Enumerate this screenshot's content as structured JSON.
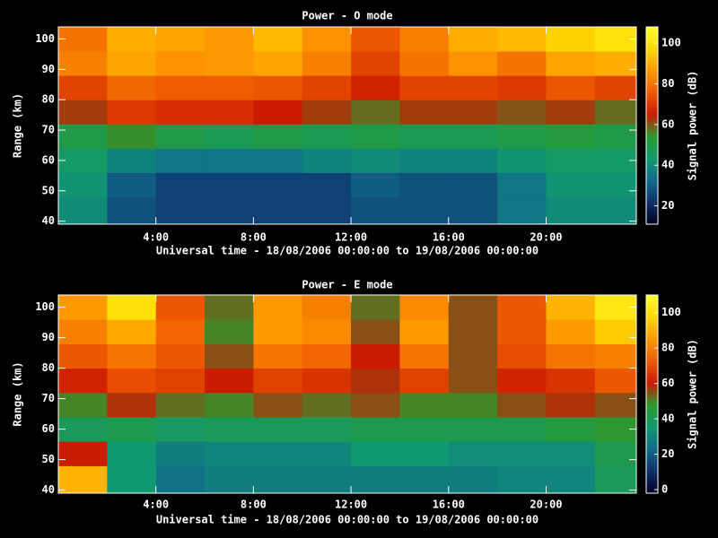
{
  "chart_data": [
    {
      "type": "heatmap",
      "title": "Power - O mode",
      "xlabel": "Universal time - 18/08/2006 00:00:00 to 19/08/2006 00:00:00",
      "ylabel": "Range (km)",
      "zlabel": "Signal power (dB)",
      "xlim": [
        0,
        23.7
      ],
      "ylim": [
        39,
        104
      ],
      "zlim": [
        11,
        108
      ],
      "xticks": [
        {
          "value": 4,
          "label": "4:00"
        },
        {
          "value": 8,
          "label": "8:00"
        },
        {
          "value": 12,
          "label": "12:00"
        },
        {
          "value": 16,
          "label": "16:00"
        },
        {
          "value": 20,
          "label": "20:00"
        }
      ],
      "yticks": [
        40,
        50,
        60,
        70,
        80,
        90,
        100
      ],
      "zticks": [
        20,
        40,
        60,
        80,
        100
      ],
      "colorscale": [
        "#000020",
        "#10306a",
        "#106a8a",
        "#109a70",
        "#2a9a30",
        "#cc1a00",
        "#ee5a00",
        "#ff9a00",
        "#ffd800",
        "#ffff30"
      ],
      "xbins": [
        0,
        2,
        4,
        6,
        8,
        10,
        12,
        14,
        16,
        18,
        20,
        22,
        23.7
      ],
      "ybins": [
        39,
        48,
        56,
        64,
        72,
        80,
        88,
        96,
        104
      ],
      "z": [
        [
          40,
          28,
          25,
          25,
          25,
          25,
          28,
          28,
          28,
          35,
          40,
          40
        ],
        [
          42,
          30,
          25,
          25,
          25,
          25,
          30,
          28,
          28,
          35,
          42,
          42
        ],
        [
          45,
          38,
          35,
          35,
          35,
          38,
          40,
          38,
          38,
          42,
          45,
          45
        ],
        [
          50,
          55,
          50,
          48,
          50,
          48,
          50,
          48,
          48,
          50,
          52,
          50
        ],
        [
          62,
          70,
          68,
          68,
          65,
          62,
          58,
          62,
          62,
          60,
          62,
          58
        ],
        [
          72,
          78,
          76,
          76,
          75,
          72,
          66,
          72,
          72,
          70,
          75,
          72
        ],
        [
          82,
          88,
          85,
          86,
          88,
          82,
          72,
          80,
          85,
          80,
          88,
          90
        ],
        [
          80,
          90,
          88,
          86,
          92,
          85,
          75,
          82,
          90,
          92,
          96,
          100
        ]
      ]
    },
    {
      "type": "heatmap",
      "title": "Power - E mode",
      "xlabel": "Universal time - 18/08/2006 00:00:00 to 19/08/2006 00:00:00",
      "ylabel": "Range (km)",
      "zlabel": "Signal power (dB)",
      "xlim": [
        0,
        23.7
      ],
      "ylim": [
        39,
        104
      ],
      "zlim": [
        -2,
        110
      ],
      "xticks": [
        {
          "value": 4,
          "label": "4:00"
        },
        {
          "value": 8,
          "label": "8:00"
        },
        {
          "value": 12,
          "label": "12:00"
        },
        {
          "value": 16,
          "label": "16:00"
        },
        {
          "value": 20,
          "label": "20:00"
        }
      ],
      "yticks": [
        40,
        50,
        60,
        70,
        80,
        90,
        100
      ],
      "zticks": [
        0,
        20,
        40,
        60,
        80,
        100
      ],
      "colorscale": [
        "#000020",
        "#10306a",
        "#106a8a",
        "#109a70",
        "#2a9a30",
        "#cc1a00",
        "#ee5a00",
        "#ff9a00",
        "#ffd800",
        "#ffff30"
      ],
      "xbins": [
        0,
        2,
        4,
        6,
        8,
        10,
        12,
        14,
        16,
        18,
        20,
        22,
        23.7
      ],
      "ybins": [
        39,
        48,
        56,
        64,
        72,
        80,
        88,
        96,
        104
      ],
      "z": [
        [
          90,
          35,
          25,
          28,
          28,
          28,
          28,
          28,
          28,
          30,
          30,
          40
        ],
        [
          60,
          35,
          28,
          30,
          30,
          30,
          35,
          35,
          32,
          32,
          32,
          42
        ],
        [
          40,
          42,
          38,
          40,
          40,
          40,
          42,
          42,
          42,
          42,
          45,
          48
        ],
        [
          50,
          58,
          52,
          50,
          55,
          52,
          55,
          50,
          50,
          55,
          58,
          55
        ],
        [
          62,
          70,
          68,
          60,
          68,
          65,
          58,
          68,
          55,
          62,
          65,
          72
        ],
        [
          72,
          78,
          72,
          55,
          78,
          75,
          60,
          78,
          55,
          70,
          78,
          80
        ],
        [
          80,
          88,
          75,
          50,
          85,
          82,
          55,
          85,
          55,
          72,
          85,
          95
        ],
        [
          85,
          100,
          72,
          52,
          85,
          80,
          52,
          82,
          55,
          72,
          90,
          102
        ]
      ]
    }
  ]
}
